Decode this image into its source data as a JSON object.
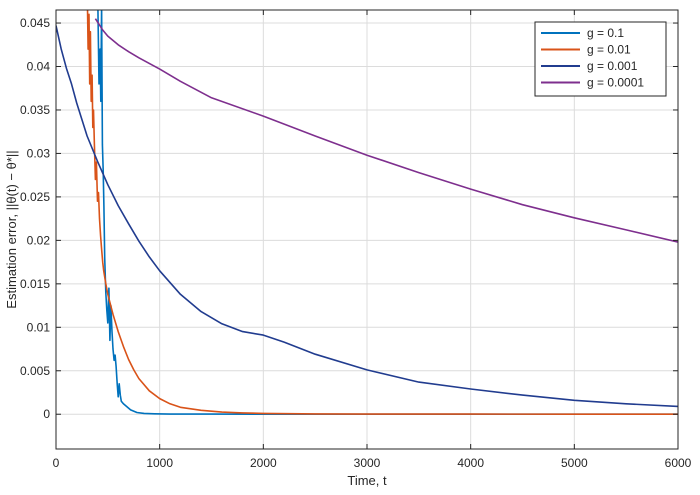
{
  "chart_data": {
    "type": "line",
    "title": "",
    "xlabel": "Time, t",
    "ylabel": "Estimation error, ||θ(t) − θ*||",
    "xlim": [
      0,
      6000
    ],
    "ylim": [
      -0.004,
      0.0465
    ],
    "xticks": [
      0,
      1000,
      2000,
      3000,
      4000,
      5000,
      6000
    ],
    "xtick_labels": [
      "0",
      "1000",
      "2000",
      "3000",
      "4000",
      "5000",
      "6000"
    ],
    "yticks": [
      0,
      0.005,
      0.01,
      0.015,
      0.02,
      0.025,
      0.03,
      0.035,
      0.04,
      0.045
    ],
    "ytick_labels": [
      "0",
      "0.005",
      "0.01",
      "0.015",
      "0.02",
      "0.025",
      "0.03",
      "0.035",
      "0.04",
      "0.045"
    ],
    "grid": true,
    "legend_position": "top-right",
    "series": [
      {
        "name": "g = 0.1",
        "color": "#0072BD",
        "x": [
          400,
          415,
          425,
          432,
          440,
          448,
          455,
          462,
          470,
          480,
          490,
          500,
          510,
          520,
          530,
          540,
          550,
          560,
          570,
          580,
          590,
          600,
          610,
          620,
          630,
          650,
          680,
          720,
          780,
          850,
          950,
          1100,
          1500,
          2000,
          3000,
          4000,
          5000,
          6000
        ],
        "y": [
          0.05,
          0.038,
          0.042,
          0.036,
          0.047,
          0.031,
          0.028,
          0.024,
          0.018,
          0.014,
          0.012,
          0.0105,
          0.0145,
          0.0085,
          0.0125,
          0.0095,
          0.0075,
          0.0062,
          0.0068,
          0.0055,
          0.0035,
          0.002,
          0.0035,
          0.0022,
          0.0015,
          0.0012,
          0.0009,
          0.0005,
          0.0002,
          0.0001,
          5e-05,
          2e-05,
          1e-05,
          0.0,
          0.0,
          0.0,
          0.0,
          0.0
        ]
      },
      {
        "name": "g = 0.01",
        "color": "#D95319",
        "x": [
          300,
          310,
          318,
          325,
          332,
          340,
          348,
          355,
          362,
          370,
          380,
          390,
          400,
          410,
          420,
          430,
          440,
          450,
          460,
          480,
          500,
          550,
          600,
          650,
          700,
          750,
          800,
          900,
          1000,
          1100,
          1200,
          1400,
          1600,
          1800,
          2000,
          2500,
          3000,
          4000,
          5000,
          6000
        ],
        "y": [
          0.05,
          0.042,
          0.046,
          0.038,
          0.044,
          0.036,
          0.039,
          0.033,
          0.035,
          0.031,
          0.027,
          0.029,
          0.0245,
          0.0255,
          0.0225,
          0.0205,
          0.019,
          0.0175,
          0.0165,
          0.015,
          0.0138,
          0.0115,
          0.0095,
          0.0078,
          0.0063,
          0.0051,
          0.0041,
          0.0027,
          0.0018,
          0.0012,
          0.0008,
          0.00045,
          0.00025,
          0.00015,
          0.0001,
          4e-05,
          2e-05,
          1e-05,
          0.0,
          0.0
        ]
      },
      {
        "name": "g = 0.001",
        "color": "#213C8F",
        "x": [
          0,
          50,
          100,
          150,
          200,
          250,
          300,
          400,
          500,
          600,
          700,
          800,
          900,
          1000,
          1200,
          1400,
          1600,
          1800,
          2000,
          2200,
          2500,
          3000,
          3500,
          4000,
          4500,
          5000,
          5500,
          6000
        ],
        "y": [
          0.0447,
          0.042,
          0.0398,
          0.038,
          0.0358,
          0.0339,
          0.032,
          0.0291,
          0.0264,
          0.024,
          0.0219,
          0.0199,
          0.0181,
          0.0165,
          0.0138,
          0.0118,
          0.0104,
          0.0095,
          0.0091,
          0.0083,
          0.0069,
          0.0051,
          0.0037,
          0.0029,
          0.0022,
          0.0016,
          0.0012,
          0.0009
        ]
      },
      {
        "name": "g = 0.0001",
        "color": "#7E2F8E",
        "x": [
          380,
          450,
          500,
          600,
          700,
          800,
          1000,
          1200,
          1500,
          2000,
          2500,
          3000,
          3500,
          4000,
          4500,
          5000,
          5500,
          6000
        ],
        "y": [
          0.0455,
          0.0442,
          0.0435,
          0.0425,
          0.0417,
          0.041,
          0.0397,
          0.0383,
          0.0364,
          0.0343,
          0.032,
          0.0298,
          0.0278,
          0.0259,
          0.0241,
          0.0226,
          0.0212,
          0.0198
        ]
      }
    ]
  }
}
